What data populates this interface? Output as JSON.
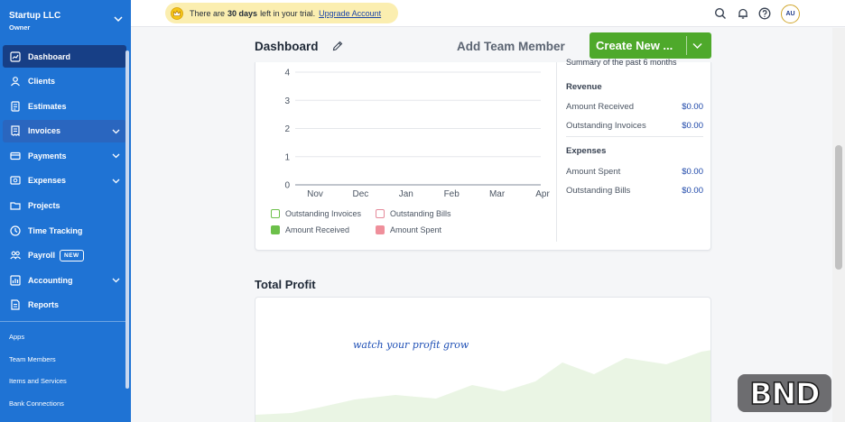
{
  "company": {
    "name": "Startup LLC",
    "role": "Owner"
  },
  "nav": [
    {
      "label": "Dashboard",
      "icon": "dashboard-icon",
      "chevron": false,
      "active": true
    },
    {
      "label": "Clients",
      "icon": "clients-icon",
      "chevron": false
    },
    {
      "label": "Estimates",
      "icon": "estimates-icon",
      "chevron": false
    },
    {
      "label": "Invoices",
      "icon": "invoices-icon",
      "chevron": true,
      "highlighted": true
    },
    {
      "label": "Payments",
      "icon": "payments-icon",
      "chevron": true
    },
    {
      "label": "Expenses",
      "icon": "expenses-icon",
      "chevron": true
    },
    {
      "label": "Projects",
      "icon": "projects-icon",
      "chevron": false
    },
    {
      "label": "Time Tracking",
      "icon": "clock-icon",
      "chevron": false
    },
    {
      "label": "Payroll",
      "icon": "payroll-icon",
      "chevron": false,
      "badge": "NEW"
    },
    {
      "label": "Accounting",
      "icon": "accounting-icon",
      "chevron": true
    },
    {
      "label": "Reports",
      "icon": "reports-icon",
      "chevron": false
    }
  ],
  "sub_links": [
    "Apps",
    "Team Members",
    "Items and Services",
    "Bank Connections"
  ],
  "trial": {
    "before": "There are",
    "days": "30 days",
    "after": "left in your trial.",
    "link": "Upgrade Account"
  },
  "avatar": "AU",
  "dashboard": {
    "title": "Dashboard",
    "add_team": "Add Team Member",
    "create_new": "Create New ..."
  },
  "chart_data": {
    "type": "bar",
    "categories": [
      "Nov",
      "Dec",
      "Jan",
      "Feb",
      "Mar",
      "Apr"
    ],
    "y_ticks": [
      "0",
      "1",
      "2",
      "3",
      "4"
    ],
    "ylim": [
      0,
      4
    ],
    "grid": true,
    "series": [
      {
        "name": "Outstanding Invoices",
        "values": [
          0,
          0,
          0,
          0,
          0,
          0
        ],
        "color": "#6cc04a",
        "style": "outline"
      },
      {
        "name": "Outstanding Bills",
        "values": [
          0,
          0,
          0,
          0,
          0,
          0
        ],
        "color": "#e58a9a",
        "style": "outline"
      },
      {
        "name": "Amount Received",
        "values": [
          0,
          0,
          0,
          0,
          0,
          0
        ],
        "color": "#6cc04a",
        "style": "filled"
      },
      {
        "name": "Amount Spent",
        "values": [
          0,
          0,
          0,
          0,
          0,
          0
        ],
        "color": "#ef8f9b",
        "style": "filled"
      }
    ]
  },
  "summary": {
    "heading": "Summary of the past 6 months",
    "revenue_title": "Revenue",
    "amount_received_label": "Amount Received",
    "amount_received_value": "$0.00",
    "outstanding_invoices_label": "Outstanding Invoices",
    "outstanding_invoices_value": "$0.00",
    "expenses_title": "Expenses",
    "amount_spent_label": "Amount Spent",
    "amount_spent_value": "$0.00",
    "outstanding_bills_label": "Outstanding Bills",
    "outstanding_bills_value": "$0.00"
  },
  "total_profit": {
    "title": "Total Profit",
    "placeholder": "watch your profit grow"
  },
  "watermark": "BND"
}
